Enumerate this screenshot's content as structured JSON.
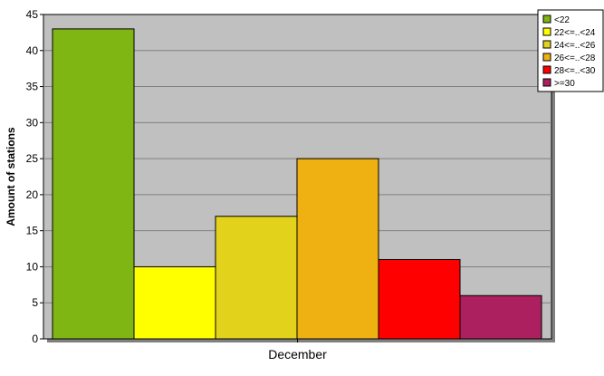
{
  "chart_data": {
    "type": "bar",
    "categories": [
      "December"
    ],
    "series": [
      {
        "name": "<22",
        "values": [
          43
        ],
        "color": "#7fb614"
      },
      {
        "name": "22<=..<24",
        "values": [
          10
        ],
        "color": "#ffff00"
      },
      {
        "name": "24<=..<26",
        "values": [
          17
        ],
        "color": "#e3d21c"
      },
      {
        "name": "26<=..<28",
        "values": [
          25
        ],
        "color": "#efb012"
      },
      {
        "name": "28<=..<30",
        "values": [
          11
        ],
        "color": "#ff0000"
      },
      {
        "name": ">=30",
        "values": [
          6
        ],
        "color": "#ad2060"
      }
    ],
    "title": "",
    "xlabel": "",
    "ylabel": "Amount of stations",
    "ylim": [
      0,
      45
    ],
    "yticks": [
      0,
      5,
      10,
      15,
      20,
      25,
      30,
      35,
      40,
      45
    ],
    "grid": true,
    "legend_position": "top-right",
    "plot_background": "#c0c0c0"
  }
}
